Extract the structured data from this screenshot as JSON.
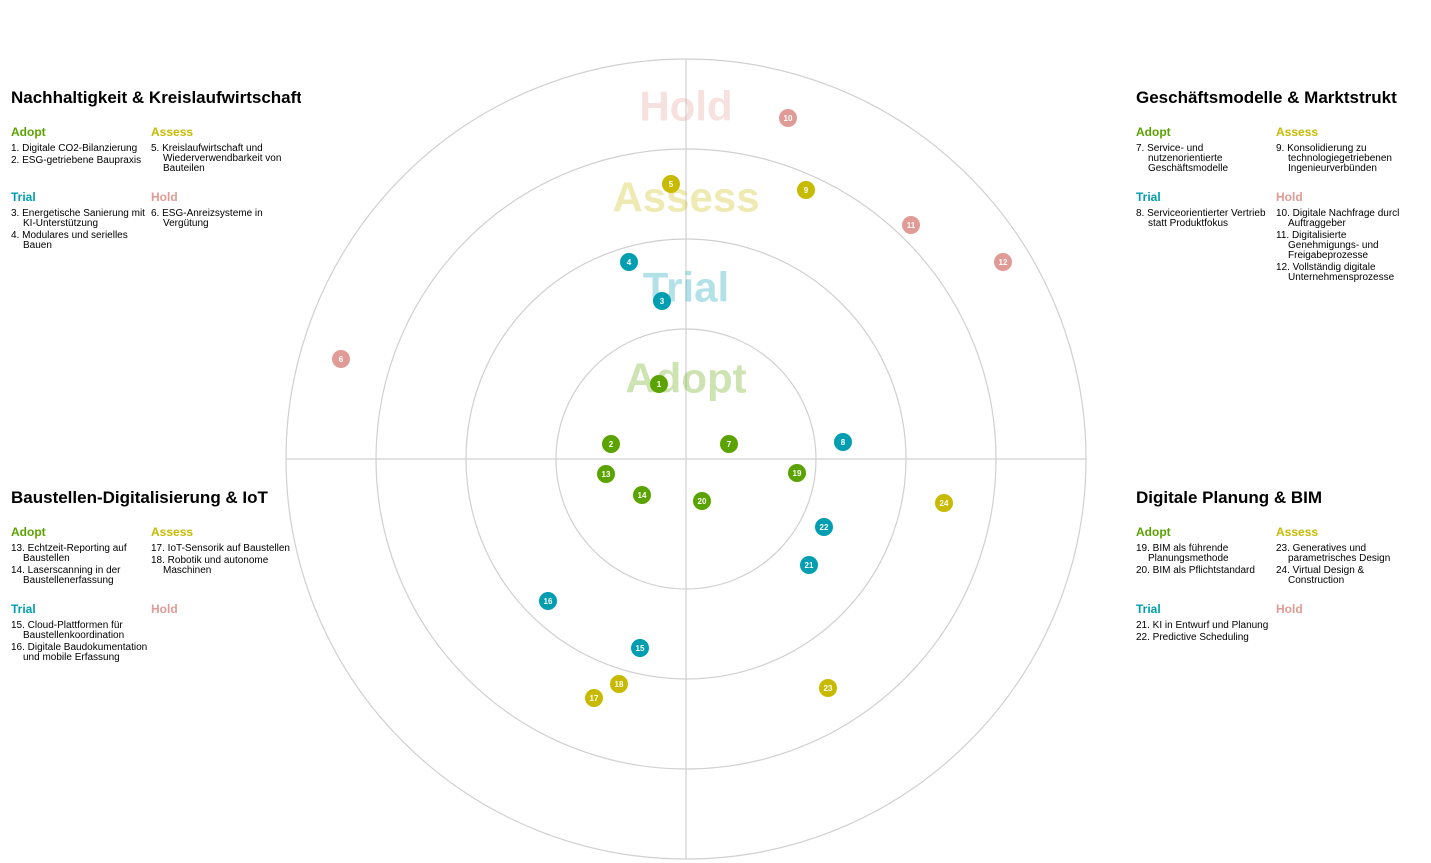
{
  "colors": {
    "adopt": "#5ba300",
    "trial": "#009eb0",
    "assess": "#c7ba00",
    "hold": "#e09b96",
    "grid": "#d0d0d0"
  },
  "ring_labels": [
    "Adopt",
    "Trial",
    "Assess",
    "Hold"
  ],
  "quadrants": [
    {
      "id": "q-nw",
      "title": "Nachhaltigkeit & Kreislaufwirtschaft",
      "rings": [
        {
          "ring": "adopt",
          "label": "Adopt",
          "items": [
            "1. Digitale CO2-Bilanzierung",
            "2. ESG-getriebene Baupraxis"
          ]
        },
        {
          "ring": "assess",
          "label": "Assess",
          "items": [
            "5. Kreislaufwirtschaft und Wiederverwendbarkeit von Bauteilen"
          ]
        },
        {
          "ring": "trial",
          "label": "Trial",
          "items": [
            "3. Energetische Sanierung mit KI-Unterstützung",
            "4. Modulares und serielles Bauen"
          ]
        },
        {
          "ring": "hold",
          "label": "Hold",
          "items": [
            "6. ESG-Anreizsysteme in Vergütung"
          ]
        }
      ]
    },
    {
      "id": "q-ne",
      "title": "Geschäftsmodelle & Marktstrukt",
      "rings": [
        {
          "ring": "adopt",
          "label": "Adopt",
          "items": [
            "7. Service- und nutzenorientierte Geschäftsmodelle"
          ]
        },
        {
          "ring": "assess",
          "label": "Assess",
          "items": [
            "9. Konsolidierung zu technologiegetriebenen Ingenieurverbünden"
          ]
        },
        {
          "ring": "trial",
          "label": "Trial",
          "items": [
            "8. Serviceorientierter Vertrieb statt Produktfokus"
          ]
        },
        {
          "ring": "hold",
          "label": "Hold",
          "items": [
            "10. Digitale Nachfrage durcl Auftraggeber",
            "11. Digitalisierte Genehmigungs- und Freigabeprozesse",
            "12. Vollständig digitale Unternehmensprozesse"
          ]
        }
      ]
    },
    {
      "id": "q-sw",
      "title": "Baustellen-Digitalisierung & IoT",
      "rings": [
        {
          "ring": "adopt",
          "label": "Adopt",
          "items": [
            "13. Echtzeit-Reporting auf Baustellen",
            "14. Laserscanning in der Baustellenerfassung"
          ]
        },
        {
          "ring": "assess",
          "label": "Assess",
          "items": [
            "17. IoT-Sensorik auf Baustellen",
            "18. Robotik und autonome Maschinen"
          ]
        },
        {
          "ring": "trial",
          "label": "Trial",
          "items": [
            "15. Cloud-Plattformen für Baustellenkoordination",
            "16. Digitale Baudokumentation und mobile Erfassung"
          ]
        },
        {
          "ring": "hold",
          "label": "Hold",
          "items": []
        }
      ]
    },
    {
      "id": "q-se",
      "title": "Digitale Planung & BIM",
      "rings": [
        {
          "ring": "adopt",
          "label": "Adopt",
          "items": [
            "19. BIM als führende Planungsmethode",
            "20. BIM als Pflichtstandard"
          ]
        },
        {
          "ring": "assess",
          "label": "Assess",
          "items": [
            "23. Generatives und parametrisches Design",
            "24. Virtual Design & Construction"
          ]
        },
        {
          "ring": "trial",
          "label": "Trial",
          "items": [
            "21. KI in Entwurf und Planung",
            "22. Predictive Scheduling"
          ]
        },
        {
          "ring": "hold",
          "label": "Hold",
          "items": []
        }
      ]
    }
  ],
  "blips": [
    {
      "n": "1",
      "ring": "adopt"
    },
    {
      "n": "2",
      "ring": "adopt"
    },
    {
      "n": "3",
      "ring": "trial"
    },
    {
      "n": "4",
      "ring": "trial"
    },
    {
      "n": "5",
      "ring": "assess"
    },
    {
      "n": "6",
      "ring": "hold"
    },
    {
      "n": "7",
      "ring": "adopt"
    },
    {
      "n": "8",
      "ring": "trial"
    },
    {
      "n": "9",
      "ring": "assess"
    },
    {
      "n": "10",
      "ring": "hold"
    },
    {
      "n": "11",
      "ring": "hold"
    },
    {
      "n": "12",
      "ring": "hold"
    },
    {
      "n": "13",
      "ring": "adopt"
    },
    {
      "n": "14",
      "ring": "adopt"
    },
    {
      "n": "15",
      "ring": "trial"
    },
    {
      "n": "16",
      "ring": "trial"
    },
    {
      "n": "17",
      "ring": "assess"
    },
    {
      "n": "18",
      "ring": "assess"
    },
    {
      "n": "19",
      "ring": "adopt"
    },
    {
      "n": "20",
      "ring": "adopt"
    },
    {
      "n": "21",
      "ring": "trial"
    },
    {
      "n": "22",
      "ring": "trial"
    },
    {
      "n": "23",
      "ring": "assess"
    },
    {
      "n": "24",
      "ring": "assess"
    }
  ]
}
